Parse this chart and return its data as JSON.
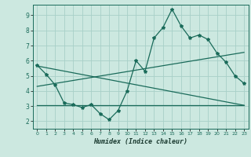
{
  "bg_color": "#cce8e0",
  "grid_color": "#a8d0c8",
  "line_color": "#1a6b5a",
  "marker_color": "#1a6b5a",
  "xlabel": "Humidex (Indice chaleur)",
  "xlim": [
    -0.5,
    23.5
  ],
  "ylim": [
    1.5,
    9.7
  ],
  "xticks": [
    0,
    1,
    2,
    3,
    4,
    5,
    6,
    7,
    8,
    9,
    10,
    11,
    12,
    13,
    14,
    15,
    16,
    17,
    18,
    19,
    20,
    21,
    22,
    23
  ],
  "yticks": [
    2,
    3,
    4,
    5,
    6,
    7,
    8,
    9
  ],
  "main_line": [
    [
      0,
      5.7
    ],
    [
      1,
      5.1
    ],
    [
      2,
      4.4
    ],
    [
      3,
      3.2
    ],
    [
      4,
      3.1
    ],
    [
      5,
      2.9
    ],
    [
      6,
      3.1
    ],
    [
      7,
      2.5
    ],
    [
      8,
      2.1
    ],
    [
      9,
      2.7
    ],
    [
      10,
      4.0
    ],
    [
      11,
      6.0
    ],
    [
      12,
      5.3
    ],
    [
      13,
      7.5
    ],
    [
      14,
      8.2
    ],
    [
      15,
      9.4
    ],
    [
      16,
      8.3
    ],
    [
      17,
      7.5
    ],
    [
      18,
      7.7
    ],
    [
      19,
      7.4
    ],
    [
      20,
      6.5
    ],
    [
      21,
      5.9
    ],
    [
      22,
      5.0
    ],
    [
      23,
      4.5
    ]
  ],
  "trend_line1": [
    [
      0,
      5.65
    ],
    [
      23,
      3.05
    ]
  ],
  "trend_line2": [
    [
      0,
      4.3
    ],
    [
      23,
      6.55
    ]
  ],
  "flat_line": [
    [
      0,
      3.05
    ],
    [
      23,
      3.05
    ]
  ]
}
